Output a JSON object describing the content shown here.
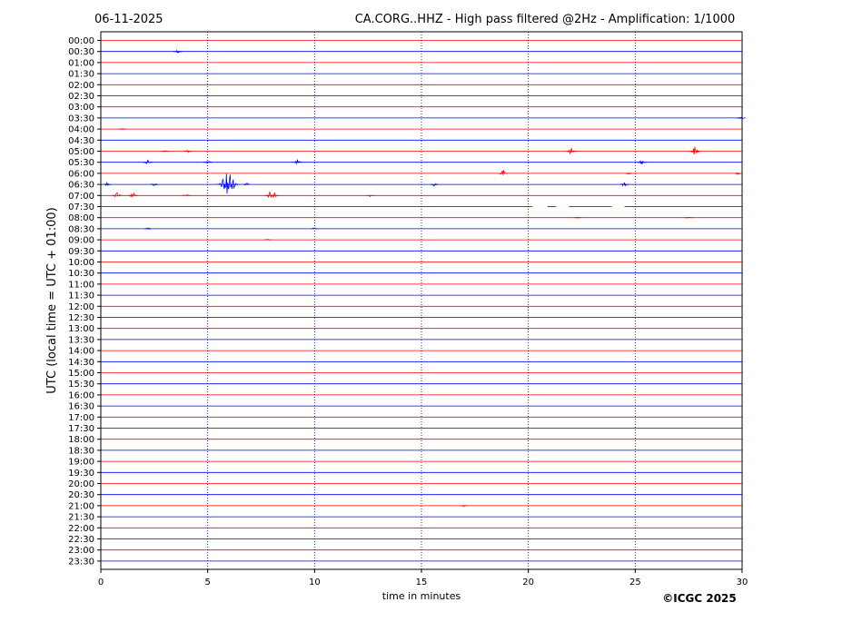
{
  "header": {
    "date": "06-11-2025",
    "station_title": "CA.CORG..HHZ - High pass filtered @2Hz - Amplification: 1/1000"
  },
  "footer": {
    "copyright": "©ICGC 2025"
  },
  "chart_data": {
    "type": "line",
    "title": "CA.CORG..HHZ - High pass filtered @2Hz - Amplification: 1/1000",
    "xlabel": "time in minutes",
    "ylabel": "UTC (local time = UTC + 01:00)",
    "xlim": [
      0,
      30
    ],
    "x_ticks": [
      0,
      5,
      10,
      15,
      20,
      25,
      30
    ],
    "grid": "vertical dotted lines at 5, 10, 15, 20, 25 minutes",
    "colors": {
      "even_rows": "#ff0000",
      "odd_rows": "#0000ff",
      "axis": "#000000"
    },
    "rows": [
      "00:00",
      "00:30",
      "01:00",
      "01:30",
      "02:00",
      "02:30",
      "03:00",
      "03:30",
      "04:00",
      "04:30",
      "05:00",
      "05:30",
      "06:00",
      "06:30",
      "07:00",
      "07:30",
      "08:00",
      "08:30",
      "09:00",
      "09:30",
      "10:00",
      "10:30",
      "11:00",
      "11:30",
      "12:00",
      "12:30",
      "13:00",
      "13:30",
      "14:00",
      "14:30",
      "15:00",
      "15:30",
      "16:00",
      "16:30",
      "17:00",
      "17:30",
      "18:00",
      "18:30",
      "19:00",
      "19:30",
      "20:00",
      "20:30",
      "21:00",
      "21:30",
      "22:00",
      "22:30",
      "23:00",
      "23:30"
    ],
    "events": [
      {
        "row": "00:30",
        "minute": 3.6,
        "amplitude": 0.3
      },
      {
        "row": "03:30",
        "minute": 29.95,
        "amplitude": 0.3
      },
      {
        "row": "04:00",
        "minute": 1.0,
        "amplitude": 0.15
      },
      {
        "row": "05:00",
        "minute": 3.0,
        "amplitude": 0.2
      },
      {
        "row": "05:00",
        "minute": 4.1,
        "amplitude": 0.3
      },
      {
        "row": "05:00",
        "minute": 22.0,
        "amplitude": 0.6
      },
      {
        "row": "05:00",
        "minute": 27.8,
        "amplitude": 0.8
      },
      {
        "row": "05:30",
        "minute": 2.2,
        "amplitude": 0.4
      },
      {
        "row": "05:30",
        "minute": 5.0,
        "amplitude": 0.4
      },
      {
        "row": "05:30",
        "minute": 9.2,
        "amplitude": 0.4
      },
      {
        "row": "05:30",
        "minute": 25.3,
        "amplitude": 0.4
      },
      {
        "row": "06:00",
        "minute": 18.8,
        "amplitude": 0.6
      },
      {
        "row": "06:00",
        "minute": 24.7,
        "amplitude": 0.2
      },
      {
        "row": "06:00",
        "minute": 29.8,
        "amplitude": 0.2
      },
      {
        "row": "06:30",
        "minute": 0.3,
        "amplitude": 0.3
      },
      {
        "row": "06:30",
        "minute": 2.5,
        "amplitude": 0.3
      },
      {
        "row": "06:30",
        "minute": 5.95,
        "amplitude": 2.8
      },
      {
        "row": "06:30",
        "minute": 6.8,
        "amplitude": 0.3
      },
      {
        "row": "06:30",
        "minute": 15.6,
        "amplitude": 0.3
      },
      {
        "row": "06:30",
        "minute": 24.5,
        "amplitude": 0.4
      },
      {
        "row": "07:00",
        "minute": 0.75,
        "amplitude": 0.6
      },
      {
        "row": "07:00",
        "minute": 1.5,
        "amplitude": 0.5
      },
      {
        "row": "07:00",
        "minute": 4.0,
        "amplitude": 0.2
      },
      {
        "row": "07:00",
        "minute": 8.0,
        "amplitude": 1.2
      },
      {
        "row": "07:00",
        "minute": 12.6,
        "amplitude": 0.2
      },
      {
        "row": "08:00",
        "minute": 22.3,
        "amplitude": 0.15
      },
      {
        "row": "08:00",
        "minute": 27.5,
        "amplitude": 0.15
      },
      {
        "row": "08:30",
        "minute": 2.2,
        "amplitude": 0.2
      },
      {
        "row": "08:30",
        "minute": 10.0,
        "amplitude": 0.2
      },
      {
        "row": "09:00",
        "minute": 7.8,
        "amplitude": 0.1
      },
      {
        "row": "21:00",
        "minute": 17.0,
        "amplitude": 0.2
      }
    ],
    "gaps": [
      {
        "row": "07:30",
        "start_minute": 20.2,
        "end_minute": 20.9
      },
      {
        "row": "07:30",
        "start_minute": 21.3,
        "end_minute": 21.9
      },
      {
        "row": "07:30",
        "start_minute": 23.9,
        "end_minute": 24.5
      }
    ]
  }
}
